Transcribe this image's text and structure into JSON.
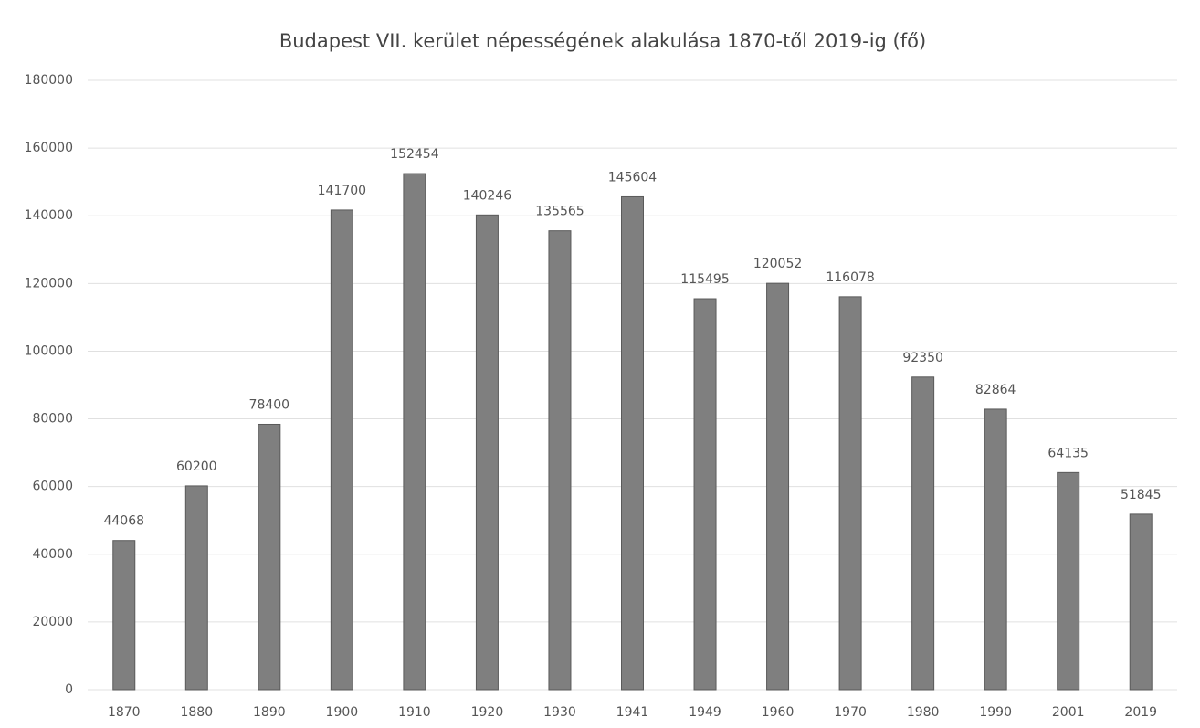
{
  "chart_data": {
    "type": "bar",
    "title": "Budapest VII. kerület népességének alakulása 1870-től 2019-ig (fő)",
    "categories": [
      "1870",
      "1880",
      "1890",
      "1900",
      "1910",
      "1920",
      "1930",
      "1941",
      "1949",
      "1960",
      "1970",
      "1980",
      "1990",
      "2001",
      "2019"
    ],
    "values": [
      44068,
      60200,
      78400,
      141700,
      152454,
      140246,
      135565,
      145604,
      115495,
      120052,
      116078,
      92350,
      82864,
      64135,
      51845
    ],
    "color": "#7f7f7f",
    "ylim": [
      0,
      180000
    ],
    "yticks": [
      0,
      20000,
      40000,
      60000,
      80000,
      100000,
      120000,
      140000,
      160000,
      180000
    ],
    "grid": true
  }
}
